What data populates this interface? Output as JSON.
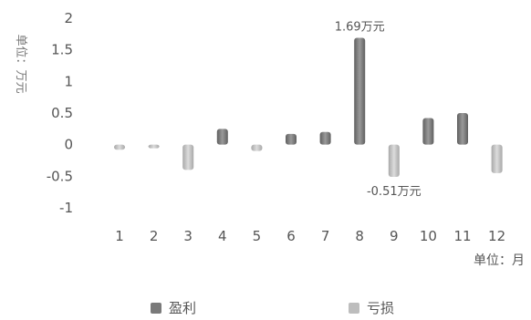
{
  "chart_data": {
    "type": "bar",
    "title": "",
    "ylabel": "单位：万元",
    "xlabel": "单位：月",
    "ylim": [
      -1,
      2
    ],
    "yticks": [
      "2",
      "1.5",
      "1",
      "0.5",
      "0",
      "-0.5",
      "-1"
    ],
    "categories": [
      "1",
      "2",
      "3",
      "4",
      "5",
      "6",
      "7",
      "8",
      "9",
      "10",
      "11",
      "12"
    ],
    "values": [
      -0.08,
      -0.04,
      -0.4,
      0.25,
      -0.1,
      0.17,
      0.2,
      1.69,
      -0.51,
      0.42,
      0.5,
      -0.45
    ],
    "annotations": [
      {
        "category": "8",
        "text": "1.69万元"
      },
      {
        "category": "9",
        "text": "-0.51万元"
      }
    ],
    "legend": [
      {
        "label": "盈利",
        "color": "#7a7a7a"
      },
      {
        "label": "亏损",
        "color": "#bdbdbd"
      }
    ],
    "legend_position": "bottom",
    "grid": false
  }
}
